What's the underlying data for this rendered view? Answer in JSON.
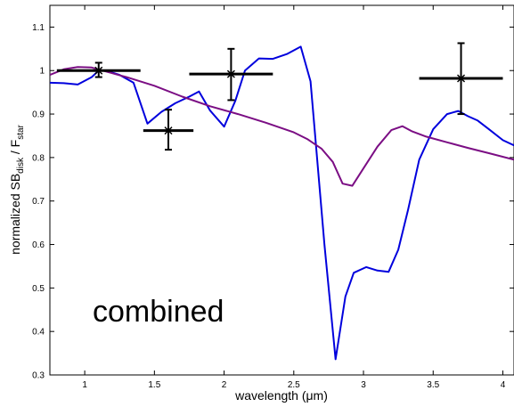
{
  "chart_data": {
    "type": "line",
    "xlabel": "wavelength (μm)",
    "ylabel": {
      "main": "normalized SB",
      "sub1": "disk",
      "mid": " / F",
      "sub2": "star"
    },
    "annotation": "combined",
    "xlim": [
      0.75,
      4.08
    ],
    "ylim": [
      0.3,
      1.15
    ],
    "xticks": [
      1,
      1.5,
      2,
      2.5,
      3,
      3.5,
      4
    ],
    "yticks": [
      0.3,
      0.4,
      0.5,
      0.6,
      0.7,
      0.8,
      0.9,
      1,
      1.1
    ],
    "grid": false,
    "series": [
      {
        "color": "#0000dd",
        "x": [
          0.75,
          0.85,
          0.95,
          1.05,
          1.1,
          1.15,
          1.25,
          1.35,
          1.45,
          1.55,
          1.65,
          1.75,
          1.82,
          1.9,
          2.0,
          2.08,
          2.15,
          2.25,
          2.35,
          2.45,
          2.55,
          2.62,
          2.72,
          2.8,
          2.87,
          2.93,
          3.02,
          3.1,
          3.18,
          3.25,
          3.32,
          3.4,
          3.5,
          3.6,
          3.68,
          3.75,
          3.82,
          3.9,
          4.0,
          4.08
        ],
        "y": [
          0.972,
          0.971,
          0.968,
          0.985,
          1.0,
          1.0,
          0.99,
          0.972,
          0.878,
          0.905,
          0.925,
          0.94,
          0.952,
          0.908,
          0.871,
          0.93,
          1.0,
          1.028,
          1.027,
          1.038,
          1.055,
          0.975,
          0.6,
          0.336,
          0.48,
          0.535,
          0.548,
          0.54,
          0.537,
          0.588,
          0.68,
          0.795,
          0.865,
          0.9,
          0.907,
          0.895,
          0.885,
          0.865,
          0.84,
          0.828
        ]
      },
      {
        "color": "#7b0e84",
        "x": [
          0.75,
          0.85,
          0.95,
          1.05,
          1.15,
          1.3,
          1.5,
          1.7,
          1.9,
          2.1,
          2.3,
          2.5,
          2.6,
          2.7,
          2.78,
          2.85,
          2.92,
          3.0,
          3.1,
          3.2,
          3.28,
          3.35,
          3.45,
          3.6,
          3.75,
          3.9,
          4.08
        ],
        "y": [
          0.99,
          1.003,
          1.008,
          1.007,
          0.998,
          0.985,
          0.965,
          0.94,
          0.918,
          0.9,
          0.88,
          0.858,
          0.842,
          0.82,
          0.79,
          0.74,
          0.735,
          0.775,
          0.825,
          0.863,
          0.872,
          0.86,
          0.848,
          0.835,
          0.822,
          0.81,
          0.795
        ]
      }
    ],
    "data_points": [
      {
        "x": 1.1,
        "y": 1.0,
        "x_low": 0.8,
        "x_high": 1.4,
        "y_low": 0.985,
        "y_high": 1.018
      },
      {
        "x": 1.6,
        "y": 0.862,
        "x_low": 1.42,
        "x_high": 1.78,
        "y_low": 0.818,
        "y_high": 0.91
      },
      {
        "x": 2.05,
        "y": 0.992,
        "x_low": 1.75,
        "x_high": 2.35,
        "y_low": 0.932,
        "y_high": 1.05
      },
      {
        "x": 3.7,
        "y": 0.982,
        "x_low": 3.4,
        "x_high": 4.0,
        "y_low": 0.9,
        "y_high": 1.063
      }
    ]
  }
}
